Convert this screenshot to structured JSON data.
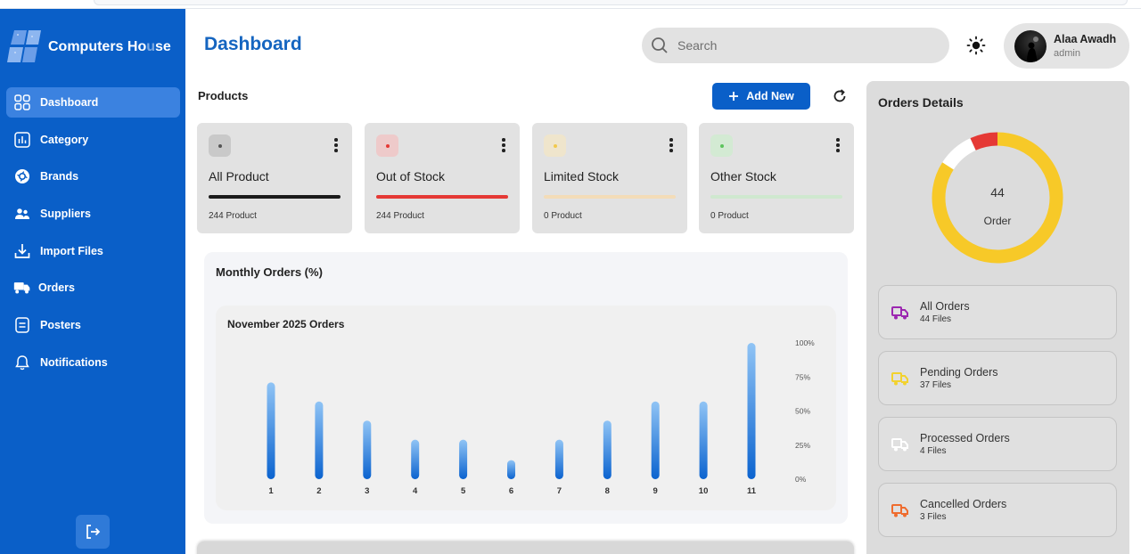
{
  "app": {
    "brand": "Computers House",
    "brand_parts": [
      "Computers Ho",
      "u",
      "se"
    ]
  },
  "sidebar": {
    "items": [
      {
        "label": "Dashboard",
        "icon": "grid-icon",
        "active": true
      },
      {
        "label": "Category",
        "icon": "chart-icon"
      },
      {
        "label": "Brands",
        "icon": "brand-icon"
      },
      {
        "label": "Suppliers",
        "icon": "users-icon"
      },
      {
        "label": "Import Files",
        "icon": "download-icon"
      },
      {
        "label": "Orders",
        "icon": "delivery-icon"
      },
      {
        "label": "Posters",
        "icon": "document-icon"
      },
      {
        "label": "Notifications",
        "icon": "bell-icon"
      }
    ],
    "logout_icon": "logout-icon"
  },
  "header": {
    "title": "Dashboard",
    "search_placeholder": "Search",
    "user": {
      "name": "Alaa Awadh",
      "role": "admin"
    }
  },
  "products": {
    "label": "Products",
    "add_button": "Add New",
    "cards": [
      {
        "name": "All Product",
        "count": "244 Product",
        "color": "#1a1a1a",
        "badge_bg": "#c9c9c9",
        "dot": "#555555"
      },
      {
        "name": "Out of Stock",
        "count": "244 Product",
        "color": "#e53935",
        "badge_bg": "#eecaca",
        "dot": "#e53935"
      },
      {
        "name": "Limited Stock",
        "count": "0 Product",
        "color": "#f3dcb8",
        "badge_bg": "#efe5cc",
        "dot": "#f2c94c"
      },
      {
        "name": "Other Stock",
        "count": "0 Product",
        "color": "#cfe8cf",
        "badge_bg": "#d3ead3",
        "dot": "#5cc45c"
      }
    ]
  },
  "monthly": {
    "title": "Monthly Orders (%)",
    "subtitle": "November 2025 Orders"
  },
  "chart_data": {
    "type": "bar",
    "title": "November 2025 Orders",
    "categories": [
      "1",
      "2",
      "3",
      "4",
      "5",
      "6",
      "7",
      "8",
      "9",
      "10",
      "11"
    ],
    "values": [
      71,
      57,
      43,
      29,
      29,
      14,
      29,
      43,
      57,
      57,
      100
    ],
    "ylim": [
      0,
      100
    ],
    "y_ticks": [
      "0%",
      "25%",
      "50%",
      "75%",
      "100%"
    ],
    "y_tick_values": [
      0,
      25,
      50,
      75,
      100
    ],
    "grid": false,
    "colors": {
      "bar_top": "#90c4f5",
      "bar_bottom": "#0b63cf"
    }
  },
  "orders": {
    "title": "Orders Details",
    "total": "44",
    "total_label": "Order",
    "donut": [
      {
        "name": "Pending Orders",
        "value": 37,
        "color": "#f7c928"
      },
      {
        "name": "Processed Orders",
        "value": 4,
        "color": "#ffffff"
      },
      {
        "name": "Cancelled Orders",
        "value": 3,
        "color": "#e53935"
      }
    ],
    "items": [
      {
        "name": "All Orders",
        "files": "44 Files",
        "icon_color": "#9c27b0"
      },
      {
        "name": "Pending Orders",
        "files": "37 Files",
        "icon_color": "#f2d22e"
      },
      {
        "name": "Processed Orders",
        "files": "4 Files",
        "icon_color": "#ffffff"
      },
      {
        "name": "Cancelled Orders",
        "files": "3 Files",
        "icon_color": "#ef6c2e"
      }
    ]
  }
}
